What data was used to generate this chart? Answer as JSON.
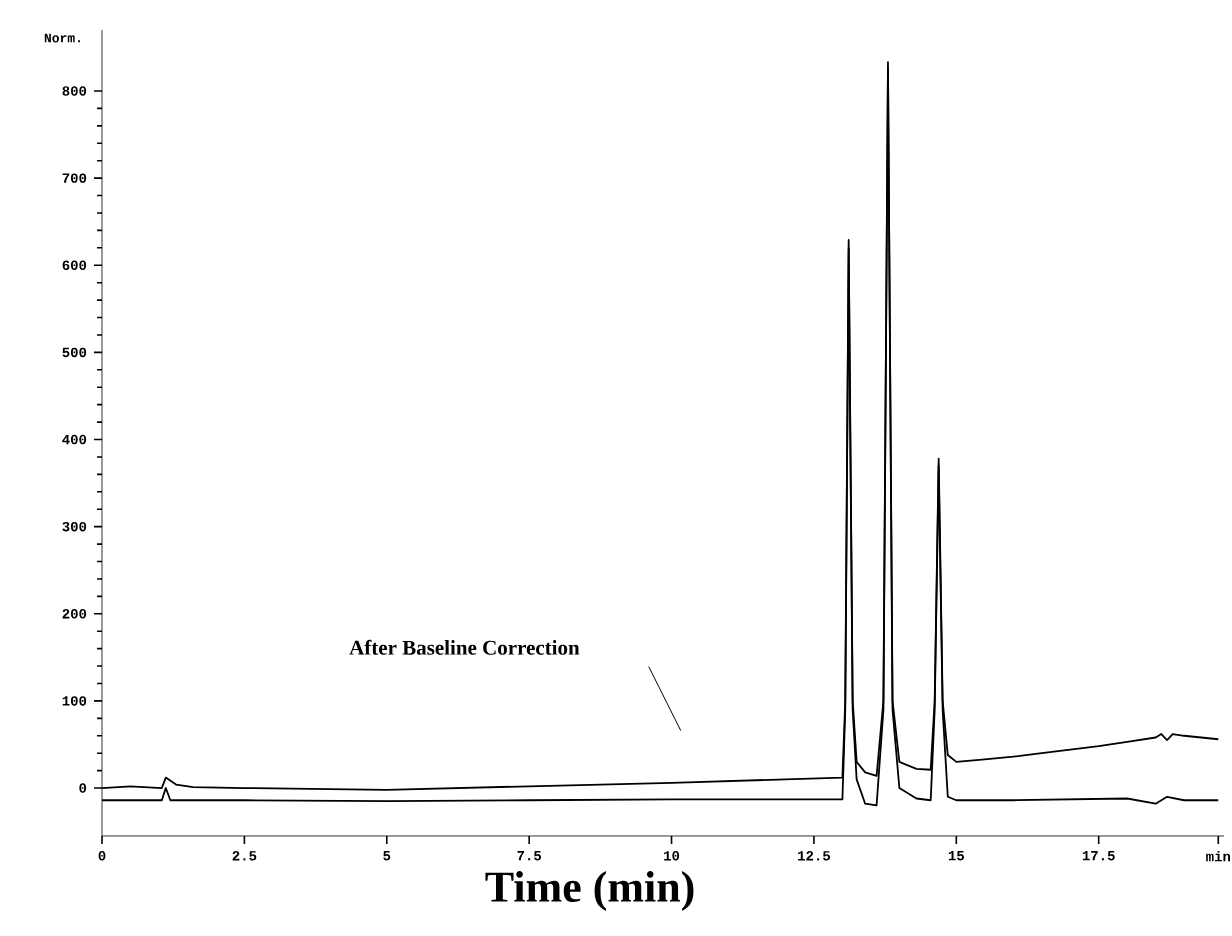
{
  "chart_data": {
    "type": "line",
    "xlabel": "Time (min)",
    "ylabel": "Norm.",
    "xlim": [
      0,
      19.7
    ],
    "ylim": [
      -55,
      870
    ],
    "xticks": [
      0,
      2.5,
      5,
      7.5,
      10,
      12.5,
      15,
      17.5,
      {
        "value": 19.6,
        "label": "min"
      }
    ],
    "yticks": [
      0,
      100,
      200,
      300,
      400,
      500,
      600,
      700,
      800
    ],
    "annotations": [
      "After Baseline Correction"
    ],
    "series": [
      {
        "color": "#000000",
        "x": [
          0,
          0.5,
          1.05,
          1.12,
          1.3,
          1.6,
          2.5,
          5,
          7.5,
          10,
          12,
          13.0,
          13.05,
          13.11,
          13.18,
          13.25,
          13.4,
          13.6,
          13.72,
          13.8,
          13.88,
          14.0,
          14.3,
          14.55,
          14.62,
          14.69,
          14.76,
          14.85,
          15.0,
          15.5,
          16,
          16.5,
          17,
          17.5,
          18,
          18.5,
          18.6,
          18.7,
          18.8,
          19,
          19.3,
          19.6
        ],
        "values": [
          0,
          2,
          0,
          12,
          4,
          1,
          0,
          -2,
          2,
          6,
          10,
          12,
          100,
          629,
          100,
          30,
          18,
          14,
          100,
          833,
          100,
          30,
          22,
          21,
          100,
          378,
          100,
          38,
          30,
          33,
          36,
          40,
          44,
          48,
          53,
          58,
          62,
          55,
          62,
          60,
          58,
          56
        ]
      },
      {
        "color": "#000000",
        "x": [
          0,
          1.05,
          1.12,
          1.2,
          2.5,
          5,
          7.5,
          10,
          12,
          13.0,
          13.05,
          13.11,
          13.18,
          13.25,
          13.4,
          13.6,
          13.72,
          13.8,
          13.88,
          14.0,
          14.3,
          14.55,
          14.62,
          14.69,
          14.76,
          14.85,
          15,
          16,
          17,
          18,
          18.5,
          18.7,
          19,
          19.6
        ],
        "values": [
          -14,
          -14,
          0,
          -14,
          -14,
          -15,
          -14,
          -13,
          -13,
          -13,
          90,
          620,
          90,
          10,
          -18,
          -20,
          90,
          825,
          90,
          0,
          -12,
          -14,
          90,
          370,
          90,
          -10,
          -14,
          -14,
          -13,
          -12,
          -18,
          -10,
          -14,
          -14
        ]
      }
    ]
  }
}
